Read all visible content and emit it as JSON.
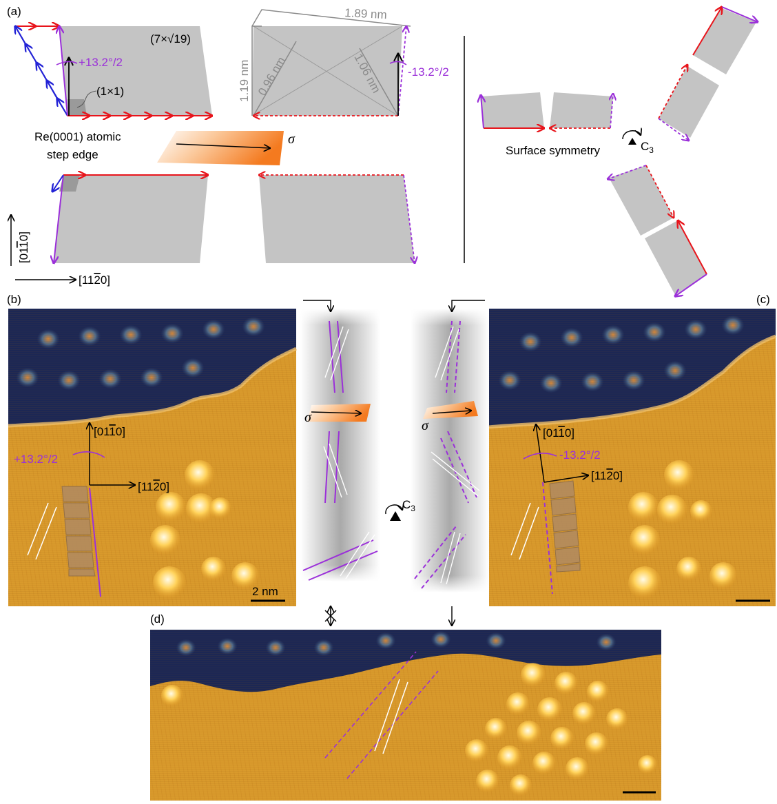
{
  "panel_labels": {
    "a": "(a)",
    "b": "(b)",
    "c": "(c)",
    "d": "(d)"
  },
  "panel_a": {
    "reconstruction": "(7×√19)",
    "unit_cell_1x1": "(1×1)",
    "angle_plus": "+13.2°/2",
    "angle_minus": "-13.2°/2",
    "step_edge_line1": "Re(0001) atomic",
    "step_edge_line2": "step edge",
    "sigma": "σ",
    "dim_long": "1.89 nm",
    "dim_short": "1.19 nm",
    "diag_1": "0.96 nm",
    "diag_2": "1.06 nm",
    "axis_vertical": "[01",
    "axis_vertical_bar": "1",
    "axis_vertical_end": "0]",
    "axis_horizontal": "[11",
    "axis_horizontal_bar": "2",
    "axis_horizontal_end": "0]",
    "surface_symmetry": "Surface symmetry",
    "c3_main": "C",
    "c3_sub": "3"
  },
  "panel_b": {
    "axis_up": "[01",
    "axis_up_bar": "1",
    "axis_up_end": "0]",
    "axis_right": "[11",
    "axis_right_bar": "2",
    "axis_right_end": "0]",
    "angle": "+13.2°/2",
    "scalebar": "2 nm"
  },
  "panel_c": {
    "axis_up": "[01",
    "axis_up_bar": "1",
    "axis_up_end": "0]",
    "axis_right": "[11",
    "axis_right_bar": "2",
    "axis_right_end": "0]",
    "angle": "-13.2°/2"
  },
  "middle": {
    "sigma_left": "σ",
    "sigma_right": "σ",
    "c3_main": "C",
    "c3_sub": "3"
  },
  "colors": {
    "arrow_red": "#e8141b",
    "arrow_blue": "#2323d6",
    "purple": "#9b30d9",
    "cell_gray": "#c4c4c4",
    "stm_dark": "#17224f",
    "stm_bright": "#e9a92e"
  }
}
